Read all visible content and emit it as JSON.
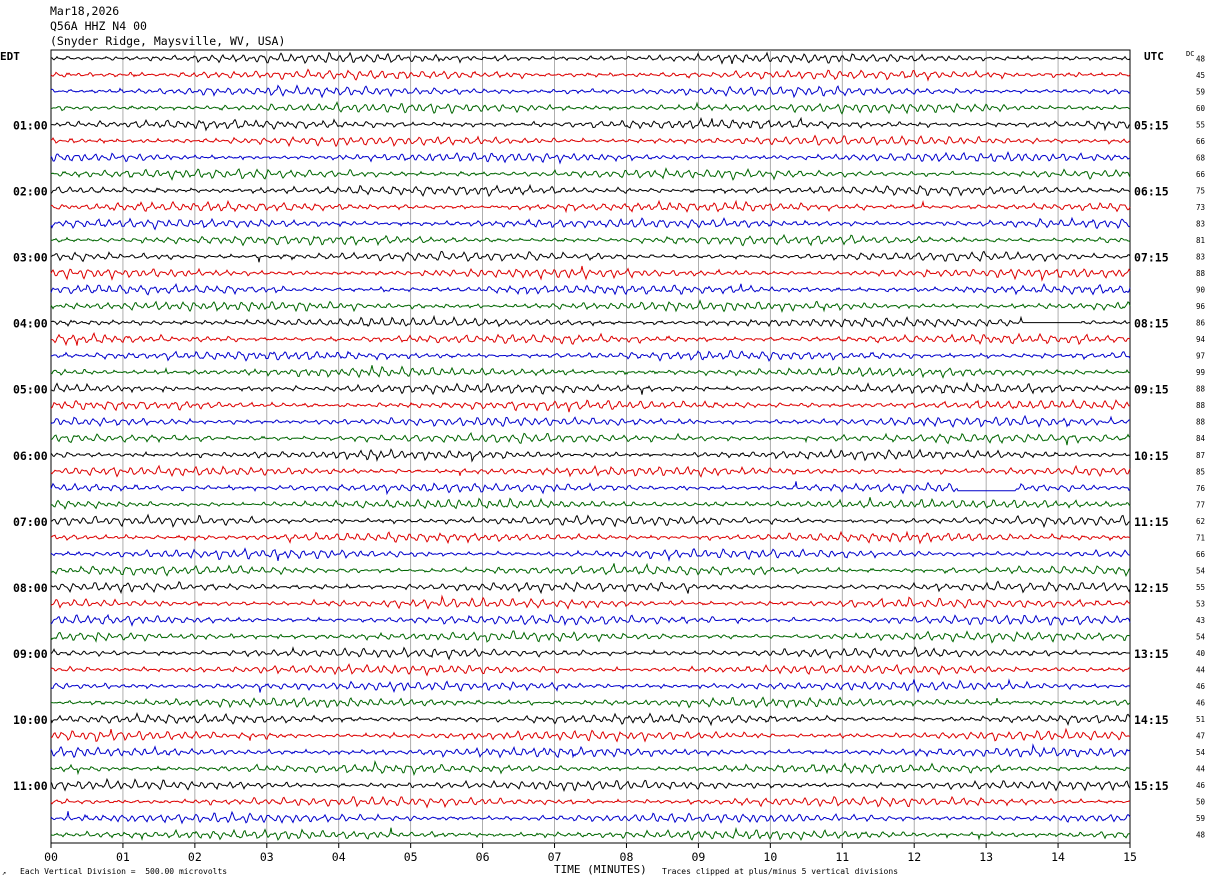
{
  "header": {
    "date": "Mar18,2026",
    "station": "Q56A HHZ N4 00",
    "location": "(Snyder Ridge, Maysville, WV, USA)"
  },
  "left_timezone": "EDT",
  "right_timezone": "UTC",
  "dc_label": "DC",
  "footer": {
    "scale_note": "Each Vertical Division =  500.00 microvolts",
    "xlabel": "TIME (MINUTES)",
    "clip_note": "Traces clipped at plus/minus 5 vertical divisions"
  },
  "colors": {
    "cycle": [
      "#000000",
      "#dd0000",
      "#0000cc",
      "#006600"
    ],
    "grid": "#999999"
  },
  "chart_data": {
    "type": "line",
    "title": "Q56A HHZ N4 00 (Snyder Ridge, Maysville, WV, USA) Mar18,2026",
    "xlabel": "TIME (MINUTES)",
    "xlim": [
      0,
      15
    ],
    "x_ticks": [
      "00",
      "01",
      "02",
      "03",
      "04",
      "05",
      "06",
      "07",
      "08",
      "09",
      "10",
      "11",
      "12",
      "13",
      "14",
      "15"
    ],
    "rows": 48,
    "minutes_per_row": 15,
    "left_time_labels": [
      "",
      "01:00",
      "02:00",
      "03:00",
      "04:00",
      "05:00",
      "06:00",
      "07:00",
      "08:00",
      "09:00",
      "10:00",
      "11:00"
    ],
    "right_time_labels": [
      "",
      "05:15",
      "06:15",
      "07:15",
      "08:15",
      "09:15",
      "10:15",
      "11:15",
      "12:15",
      "13:15",
      "14:15",
      "15:15"
    ],
    "dc_offsets": [
      48,
      45,
      59,
      60,
      55,
      66,
      68,
      66,
      75,
      73,
      83,
      81,
      83,
      88,
      90,
      96,
      86,
      94,
      97,
      99,
      88,
      88,
      88,
      84,
      87,
      85,
      76,
      77,
      62,
      71,
      66,
      54,
      55,
      53,
      43,
      54,
      40,
      44,
      46,
      46,
      51,
      47,
      54,
      44,
      46,
      50,
      59,
      48
    ],
    "clip_divisions": 5,
    "scale_microvolts_per_division": 500.0,
    "flatline_segments": [
      {
        "row": 16,
        "x_start": 13.5,
        "x_end": 14.3
      },
      {
        "row": 26,
        "x_start": 12.6,
        "x_end": 13.4
      }
    ]
  }
}
